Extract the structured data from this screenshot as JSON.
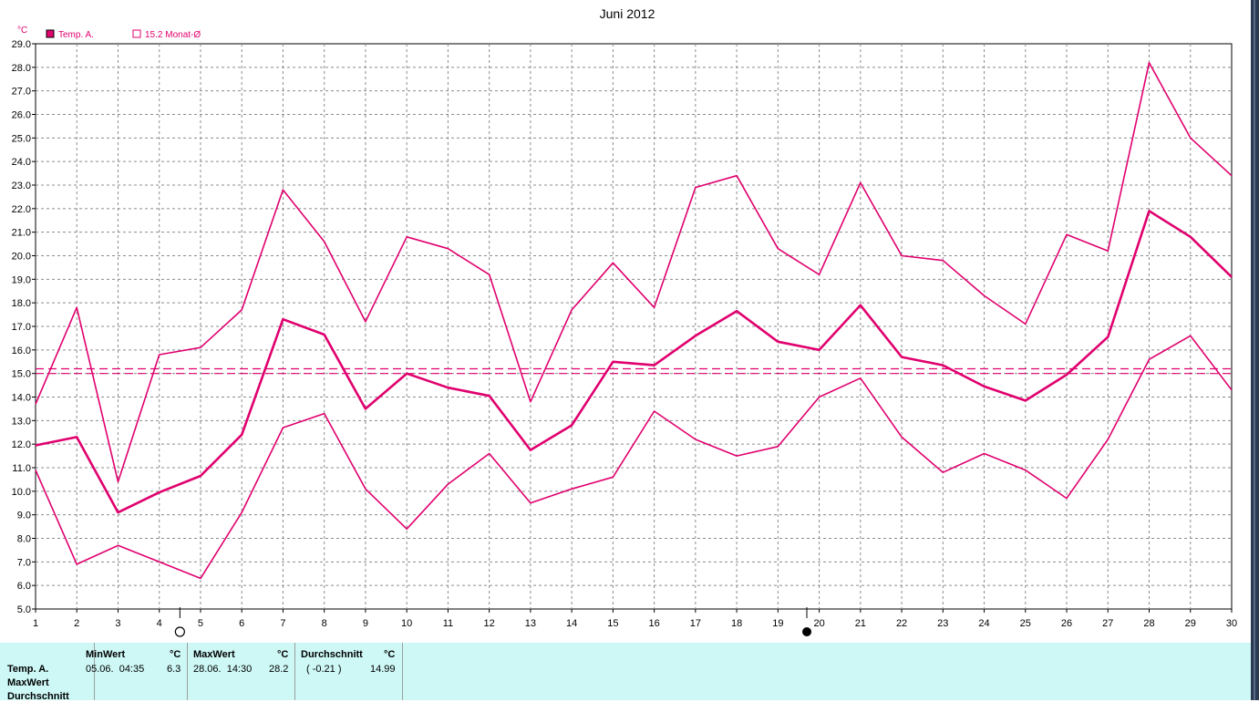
{
  "chart_data": {
    "type": "line",
    "title": "Juni 2012",
    "unit_label": "°C",
    "ylim": [
      5.0,
      29.0
    ],
    "y_ticks": [
      "5.0",
      "6.0",
      "7.0",
      "8.0",
      "9.0",
      "10.0",
      "11.0",
      "12.0",
      "13.0",
      "14.0",
      "15.0",
      "16.0",
      "17.0",
      "18.0",
      "19.0",
      "20.0",
      "21.0",
      "22.0",
      "23.0",
      "24.0",
      "25.0",
      "26.0",
      "27.0",
      "28.0",
      "29.0"
    ],
    "x": [
      1,
      2,
      3,
      4,
      5,
      6,
      7,
      8,
      9,
      10,
      11,
      12,
      13,
      14,
      15,
      16,
      17,
      18,
      19,
      20,
      21,
      22,
      23,
      24,
      25,
      26,
      27,
      28,
      29,
      30
    ],
    "grid": true,
    "legend": [
      {
        "label": "Temp. A.",
        "color": "#e0006e",
        "swatch": "filled"
      },
      {
        "label": "15.2 Monat-Ø",
        "color": "#e0006e",
        "swatch": "hollow"
      }
    ],
    "series": [
      {
        "role": "max",
        "color": "#e0006e",
        "values": [
          13.7,
          17.8,
          10.4,
          15.8,
          16.1,
          17.7,
          22.8,
          20.6,
          17.2,
          20.8,
          20.3,
          19.2,
          13.8,
          17.7,
          19.7,
          17.8,
          22.9,
          23.4,
          20.3,
          19.2,
          23.1,
          20.0,
          19.8,
          18.3,
          17.1,
          20.9,
          20.2,
          28.2,
          25.0,
          23.4
        ]
      },
      {
        "role": "mean",
        "color": "#e0006e",
        "values": [
          11.95,
          12.3,
          9.1,
          9.95,
          10.65,
          12.4,
          17.3,
          16.65,
          13.5,
          15.0,
          14.4,
          14.05,
          11.75,
          12.8,
          15.5,
          15.35,
          16.6,
          17.65,
          16.35,
          16.0,
          17.9,
          15.7,
          15.35,
          14.45,
          13.85,
          14.95,
          16.55,
          21.9,
          20.8,
          19.1
        ]
      },
      {
        "role": "min",
        "color": "#e0006e",
        "values": [
          10.9,
          6.9,
          7.7,
          7.0,
          6.3,
          9.1,
          12.7,
          13.3,
          10.1,
          8.4,
          10.3,
          11.6,
          9.5,
          10.1,
          10.6,
          13.4,
          12.2,
          11.5,
          11.9,
          14.0,
          14.8,
          12.3,
          10.8,
          11.6,
          10.9,
          9.7,
          12.2,
          15.6,
          16.6,
          14.3
        ]
      }
    ],
    "reference_lines": [
      {
        "label": "Monat-Ø",
        "value": 15.2,
        "color": "#e0006e",
        "style": "dashed"
      },
      {
        "value": 15.0,
        "color": "#e0006e",
        "style": "dashed"
      }
    ],
    "moon_markers": [
      {
        "day": 4.5,
        "phase": "full"
      },
      {
        "day": 19.7,
        "phase": "new"
      }
    ]
  },
  "stats": {
    "row_labels": [
      "Temp. A.",
      "MaxWert",
      "Durchschnitt"
    ],
    "min": {
      "header": "MinWert",
      "unit": "°C",
      "when": "05.06.  04:35",
      "value": "6.3"
    },
    "max": {
      "header": "MaxWert",
      "unit": "°C",
      "when": "28.06.  14:30",
      "value": "28.2"
    },
    "avg": {
      "header": "Durchschnitt",
      "unit": "°C",
      "delta": "( -0.21 )",
      "value": "14.99"
    }
  }
}
